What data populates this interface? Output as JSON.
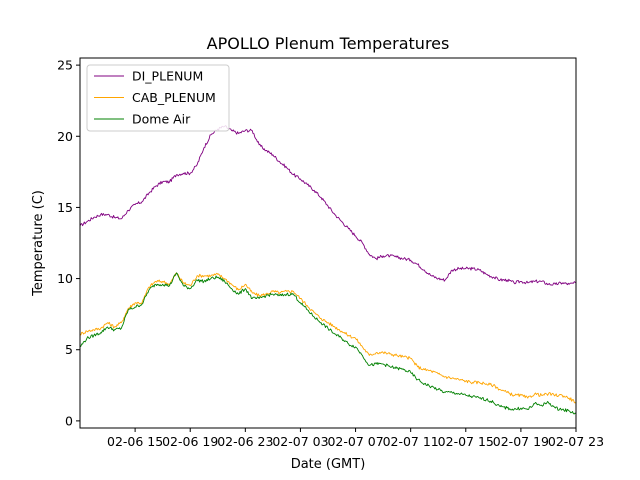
{
  "chart_data": {
    "type": "line",
    "title": "APOLLO Plenum Temperatures",
    "xlabel": "Date (GMT)",
    "ylabel": "Temperature (C)",
    "x_unit": "hours since 02-06 12:00 GMT",
    "xlim": [
      0,
      36
    ],
    "ylim": [
      -0.5,
      25.5
    ],
    "yticks": [
      0,
      5,
      10,
      15,
      20,
      25
    ],
    "xticks": [
      {
        "value": 4,
        "label": "02-06 15"
      },
      {
        "value": 8,
        "label": "02-06 19"
      },
      {
        "value": 12,
        "label": "02-06 23"
      },
      {
        "value": 16,
        "label": "02-07 03"
      },
      {
        "value": 20,
        "label": "02-07 07"
      },
      {
        "value": 24,
        "label": "02-07 11"
      },
      {
        "value": 28,
        "label": "02-07 15"
      },
      {
        "value": 32,
        "label": "02-07 19"
      },
      {
        "value": 36,
        "label": "02-07 23"
      }
    ],
    "legend_position": "top-left",
    "series": [
      {
        "name": "DI_PLENUM",
        "color": "#800080",
        "points": [
          [
            0,
            13.7
          ],
          [
            0.5,
            14.0
          ],
          [
            1,
            14.3
          ],
          [
            1.5,
            14.5
          ],
          [
            2,
            14.5
          ],
          [
            2.5,
            14.3
          ],
          [
            3,
            14.2
          ],
          [
            3.5,
            14.8
          ],
          [
            4,
            15.2
          ],
          [
            4.5,
            15.4
          ],
          [
            5,
            16.0
          ],
          [
            5.5,
            16.5
          ],
          [
            6,
            16.8
          ],
          [
            6.5,
            16.8
          ],
          [
            7,
            17.3
          ],
          [
            7.5,
            17.4
          ],
          [
            8,
            17.4
          ],
          [
            8.5,
            18.0
          ],
          [
            9,
            19.2
          ],
          [
            9.5,
            20.1
          ],
          [
            10,
            20.5
          ],
          [
            10.5,
            20.7
          ],
          [
            11,
            20.4
          ],
          [
            11.5,
            20.2
          ],
          [
            12,
            20.4
          ],
          [
            12.5,
            20.4
          ],
          [
            13,
            19.4
          ],
          [
            13.5,
            19.0
          ],
          [
            14,
            18.7
          ],
          [
            14.5,
            18.2
          ],
          [
            15,
            17.8
          ],
          [
            15.5,
            17.3
          ],
          [
            16,
            17.0
          ],
          [
            16.5,
            16.6
          ],
          [
            17,
            16.2
          ],
          [
            17.5,
            15.7
          ],
          [
            18,
            15.1
          ],
          [
            18.5,
            14.5
          ],
          [
            19,
            14.0
          ],
          [
            19.5,
            13.5
          ],
          [
            20,
            13.0
          ],
          [
            20.5,
            12.5
          ],
          [
            21,
            11.7
          ],
          [
            21.5,
            11.4
          ],
          [
            22,
            11.6
          ],
          [
            22.5,
            11.6
          ],
          [
            23,
            11.5
          ],
          [
            23.5,
            11.4
          ],
          [
            24,
            11.3
          ],
          [
            24.5,
            11.0
          ],
          [
            25,
            10.6
          ],
          [
            25.5,
            10.2
          ],
          [
            26,
            10.0
          ],
          [
            26.5,
            9.9
          ],
          [
            27,
            10.6
          ],
          [
            27.5,
            10.7
          ],
          [
            28,
            10.7
          ],
          [
            28.5,
            10.7
          ],
          [
            29,
            10.6
          ],
          [
            29.5,
            10.3
          ],
          [
            30,
            10.1
          ],
          [
            30.5,
            9.9
          ],
          [
            31,
            9.9
          ],
          [
            31.5,
            9.7
          ],
          [
            32,
            9.8
          ],
          [
            32.5,
            9.7
          ],
          [
            33,
            9.8
          ],
          [
            33.5,
            9.8
          ],
          [
            34,
            9.6
          ],
          [
            34.5,
            9.6
          ],
          [
            35,
            9.7
          ],
          [
            35.5,
            9.6
          ],
          [
            36,
            9.7
          ]
        ]
      },
      {
        "name": "CAB_PLENUM",
        "color": "#FFA500",
        "points": [
          [
            0,
            6.1
          ],
          [
            0.5,
            6.3
          ],
          [
            1,
            6.4
          ],
          [
            1.5,
            6.5
          ],
          [
            2,
            6.9
          ],
          [
            2.5,
            6.6
          ],
          [
            3,
            6.9
          ],
          [
            3.5,
            7.9
          ],
          [
            4,
            8.3
          ],
          [
            4.5,
            8.3
          ],
          [
            5,
            9.4
          ],
          [
            5.5,
            9.8
          ],
          [
            6,
            9.8
          ],
          [
            6.5,
            9.6
          ],
          [
            7,
            10.4
          ],
          [
            7.5,
            9.7
          ],
          [
            8,
            9.5
          ],
          [
            8.5,
            10.2
          ],
          [
            9,
            10.2
          ],
          [
            9.5,
            10.2
          ],
          [
            10,
            10.3
          ],
          [
            10.5,
            10.0
          ],
          [
            11,
            9.6
          ],
          [
            11.5,
            9.2
          ],
          [
            12,
            9.6
          ],
          [
            12.5,
            9.0
          ],
          [
            13,
            8.8
          ],
          [
            13.5,
            8.9
          ],
          [
            14,
            9.1
          ],
          [
            14.5,
            9.0
          ],
          [
            15,
            9.1
          ],
          [
            15.5,
            9.1
          ],
          [
            16,
            8.6
          ],
          [
            16.5,
            8.1
          ],
          [
            17,
            7.6
          ],
          [
            17.5,
            7.2
          ],
          [
            18,
            6.9
          ],
          [
            18.5,
            6.6
          ],
          [
            19,
            6.3
          ],
          [
            19.5,
            6.0
          ],
          [
            20,
            5.8
          ],
          [
            20.5,
            5.2
          ],
          [
            21,
            4.6
          ],
          [
            21.5,
            4.8
          ],
          [
            22,
            4.8
          ],
          [
            22.5,
            4.7
          ],
          [
            23,
            4.6
          ],
          [
            23.5,
            4.5
          ],
          [
            24,
            4.4
          ],
          [
            24.5,
            3.8
          ],
          [
            25,
            3.6
          ],
          [
            25.5,
            3.5
          ],
          [
            26,
            3.3
          ],
          [
            26.5,
            3.1
          ],
          [
            27,
            3.0
          ],
          [
            27.5,
            2.9
          ],
          [
            28,
            2.8
          ],
          [
            28.5,
            2.7
          ],
          [
            29,
            2.7
          ],
          [
            29.5,
            2.6
          ],
          [
            30,
            2.5
          ],
          [
            30.5,
            2.2
          ],
          [
            31,
            2.0
          ],
          [
            31.5,
            1.8
          ],
          [
            32,
            1.8
          ],
          [
            32.5,
            1.6
          ],
          [
            33,
            1.9
          ],
          [
            33.5,
            1.8
          ],
          [
            34,
            1.9
          ],
          [
            34.5,
            1.8
          ],
          [
            35,
            1.8
          ],
          [
            35.5,
            1.6
          ],
          [
            36,
            1.3
          ]
        ]
      },
      {
        "name": "Dome Air",
        "color": "#008000",
        "points": [
          [
            0,
            5.2
          ],
          [
            0.5,
            5.8
          ],
          [
            1,
            6.0
          ],
          [
            1.5,
            6.2
          ],
          [
            2,
            6.6
          ],
          [
            2.5,
            6.4
          ],
          [
            3,
            6.5
          ],
          [
            3.5,
            7.8
          ],
          [
            4,
            8.0
          ],
          [
            4.5,
            8.2
          ],
          [
            5,
            9.2
          ],
          [
            5.5,
            9.6
          ],
          [
            6,
            9.6
          ],
          [
            6.5,
            9.5
          ],
          [
            7,
            10.4
          ],
          [
            7.5,
            9.5
          ],
          [
            8,
            9.3
          ],
          [
            8.5,
            9.9
          ],
          [
            9,
            9.8
          ],
          [
            9.5,
            10.0
          ],
          [
            10,
            10.1
          ],
          [
            10.5,
            9.8
          ],
          [
            11,
            9.3
          ],
          [
            11.5,
            8.9
          ],
          [
            12,
            9.3
          ],
          [
            12.5,
            8.6
          ],
          [
            13,
            8.6
          ],
          [
            13.5,
            8.8
          ],
          [
            14,
            8.9
          ],
          [
            14.5,
            8.8
          ],
          [
            15,
            8.9
          ],
          [
            15.5,
            8.9
          ],
          [
            16,
            8.3
          ],
          [
            16.5,
            7.8
          ],
          [
            17,
            7.3
          ],
          [
            17.5,
            6.9
          ],
          [
            18,
            6.5
          ],
          [
            18.5,
            6.1
          ],
          [
            19,
            5.8
          ],
          [
            19.5,
            5.4
          ],
          [
            20,
            5.2
          ],
          [
            20.5,
            4.6
          ],
          [
            21,
            3.9
          ],
          [
            21.5,
            4.0
          ],
          [
            22,
            4.0
          ],
          [
            22.5,
            3.8
          ],
          [
            23,
            3.7
          ],
          [
            23.5,
            3.6
          ],
          [
            24,
            3.4
          ],
          [
            24.5,
            2.9
          ],
          [
            25,
            2.6
          ],
          [
            25.5,
            2.4
          ],
          [
            26,
            2.2
          ],
          [
            26.5,
            2.0
          ],
          [
            27,
            2.0
          ],
          [
            27.5,
            1.9
          ],
          [
            28,
            1.8
          ],
          [
            28.5,
            1.7
          ],
          [
            29,
            1.6
          ],
          [
            29.5,
            1.5
          ],
          [
            30,
            1.3
          ],
          [
            30.5,
            1.0
          ],
          [
            31,
            0.9
          ],
          [
            31.5,
            0.8
          ],
          [
            32,
            0.9
          ],
          [
            32.5,
            0.8
          ],
          [
            33,
            1.2
          ],
          [
            33.5,
            1.1
          ],
          [
            34,
            1.3
          ],
          [
            34.5,
            0.9
          ],
          [
            35,
            0.8
          ],
          [
            35.5,
            0.7
          ],
          [
            36,
            0.5
          ]
        ]
      }
    ]
  }
}
